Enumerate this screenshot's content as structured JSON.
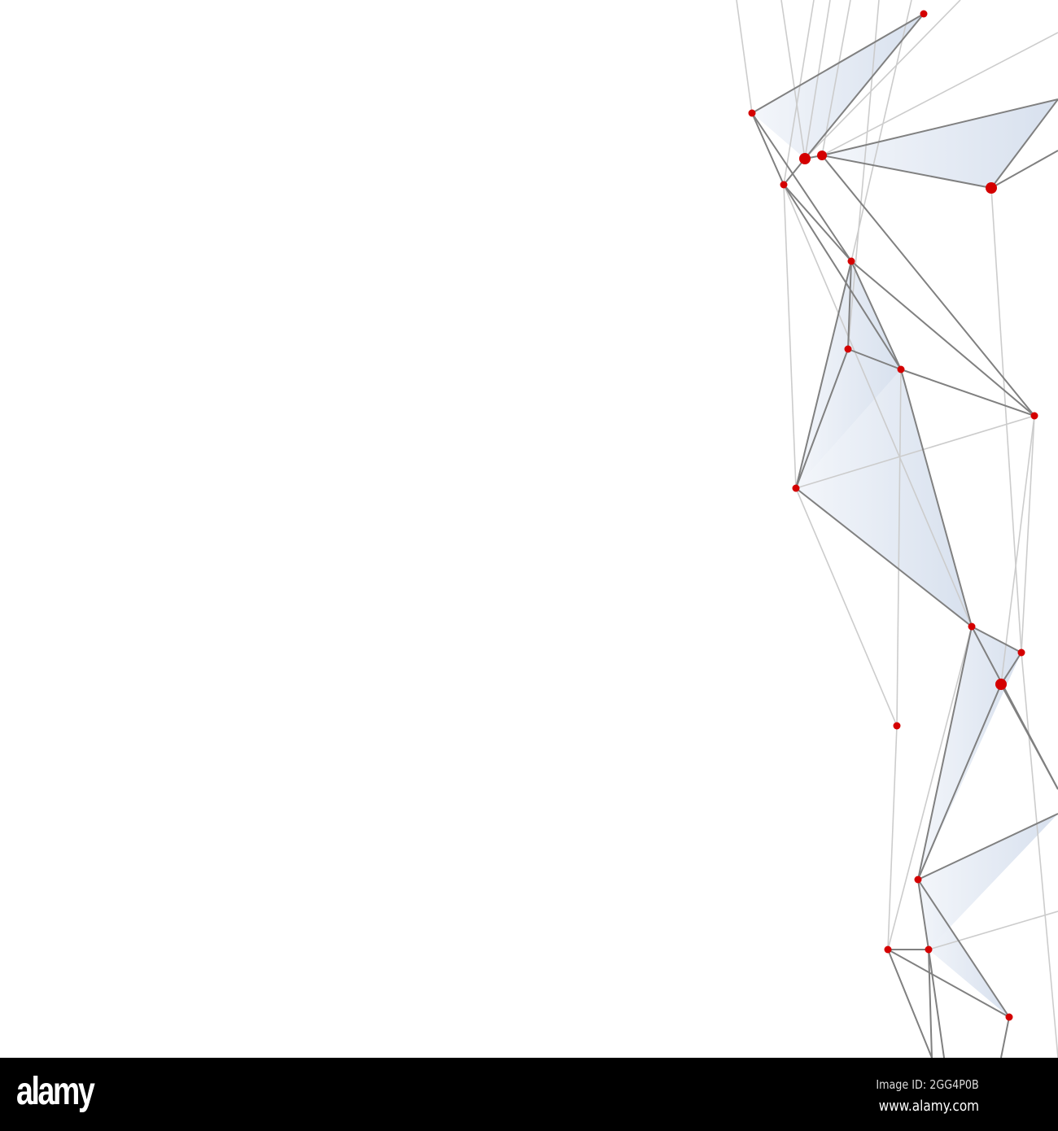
{
  "image": {
    "subject": "abstract polygonal network",
    "colors": {
      "node": "#d40000",
      "edge_dark": "#808080",
      "edge_light": "#cccccc",
      "facet": "#dce4f0",
      "background": "#ffffff"
    }
  },
  "watermark": {
    "logo_text": "alamy",
    "image_id": "Image ID: 2GG4P0B",
    "website": "www.alamy.com"
  }
}
